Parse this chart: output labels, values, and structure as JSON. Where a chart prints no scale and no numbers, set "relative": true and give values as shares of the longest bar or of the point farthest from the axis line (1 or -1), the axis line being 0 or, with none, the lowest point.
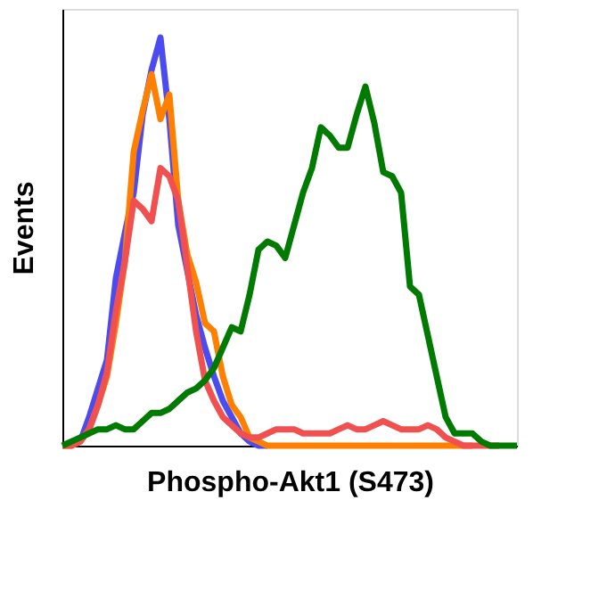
{
  "chart_data": {
    "type": "line",
    "xlabel": "Phospho-Akt1 (S473)",
    "ylabel": "Events",
    "relative": true,
    "legend": false,
    "grid": false,
    "categories": [
      null,
      null,
      null,
      null,
      null,
      null,
      null,
      null,
      null,
      null,
      null,
      null,
      null,
      null,
      null,
      null,
      null,
      null,
      null,
      null,
      null,
      null,
      null,
      null,
      null,
      null,
      null,
      null,
      null,
      null,
      null,
      null,
      null,
      null,
      null,
      null,
      null,
      null,
      null,
      null,
      null,
      null,
      null,
      null,
      null,
      null,
      null,
      null,
      null,
      null,
      null,
      null
    ],
    "series": [
      {
        "color": "#4b4bf0",
        "values": [
          null,
          null,
          0.01,
          0.07,
          0.14,
          0.21,
          0.41,
          0.52,
          0.62,
          0.81,
          0.92,
          1.0,
          0.8,
          0.54,
          0.43,
          0.32,
          0.24,
          0.17,
          0.11,
          0.07,
          0.03,
          0.01,
          0,
          0,
          null,
          null,
          null,
          null,
          null,
          null,
          null,
          null,
          null,
          null,
          null,
          null,
          null,
          null,
          null,
          null,
          null,
          null,
          null,
          null,
          null,
          null,
          null,
          null,
          null,
          null,
          null,
          null
        ]
      },
      {
        "color": "#ff8000",
        "values": [
          0,
          0,
          0.01,
          0.04,
          0.1,
          0.17,
          0.3,
          0.45,
          0.72,
          0.82,
          0.91,
          0.8,
          0.86,
          0.6,
          0.47,
          0.4,
          0.3,
          0.28,
          0.17,
          0.1,
          0.07,
          0.02,
          0.01,
          0,
          0,
          0,
          0,
          0,
          0,
          0,
          0,
          0,
          0,
          0,
          0,
          0,
          0,
          0,
          0,
          0,
          0,
          0,
          0,
          0,
          0,
          0,
          0,
          null,
          null,
          null,
          null,
          null
        ]
      },
      {
        "color": "#f05050",
        "values": [
          0,
          0,
          0.01,
          0.04,
          0.1,
          0.18,
          0.33,
          0.45,
          0.6,
          0.58,
          0.55,
          0.68,
          0.66,
          0.6,
          0.44,
          0.28,
          0.16,
          0.11,
          0.07,
          0.05,
          0.03,
          0.02,
          0.02,
          0.03,
          0.04,
          0.04,
          0.04,
          0.03,
          0.03,
          0.03,
          0.03,
          0.04,
          0.05,
          0.04,
          0.04,
          0.05,
          0.06,
          0.05,
          0.04,
          0.04,
          0.04,
          0.05,
          0.04,
          0.02,
          0.01,
          0,
          0,
          0,
          0,
          0,
          null,
          null
        ]
      },
      {
        "color": "#007a00",
        "values": [
          0,
          0.01,
          0.02,
          0.03,
          0.04,
          0.04,
          0.05,
          0.04,
          0.04,
          0.06,
          0.08,
          0.08,
          0.09,
          0.11,
          0.13,
          0.14,
          0.16,
          0.19,
          0.24,
          0.29,
          0.28,
          0.37,
          0.48,
          0.5,
          0.49,
          0.46,
          0.54,
          0.62,
          0.68,
          0.78,
          0.76,
          0.73,
          0.73,
          0.81,
          0.88,
          0.79,
          0.67,
          0.66,
          0.62,
          0.39,
          0.37,
          0.27,
          0.17,
          0.07,
          0.03,
          0.03,
          0.03,
          0.01,
          0,
          0,
          0,
          0
        ]
      }
    ]
  }
}
